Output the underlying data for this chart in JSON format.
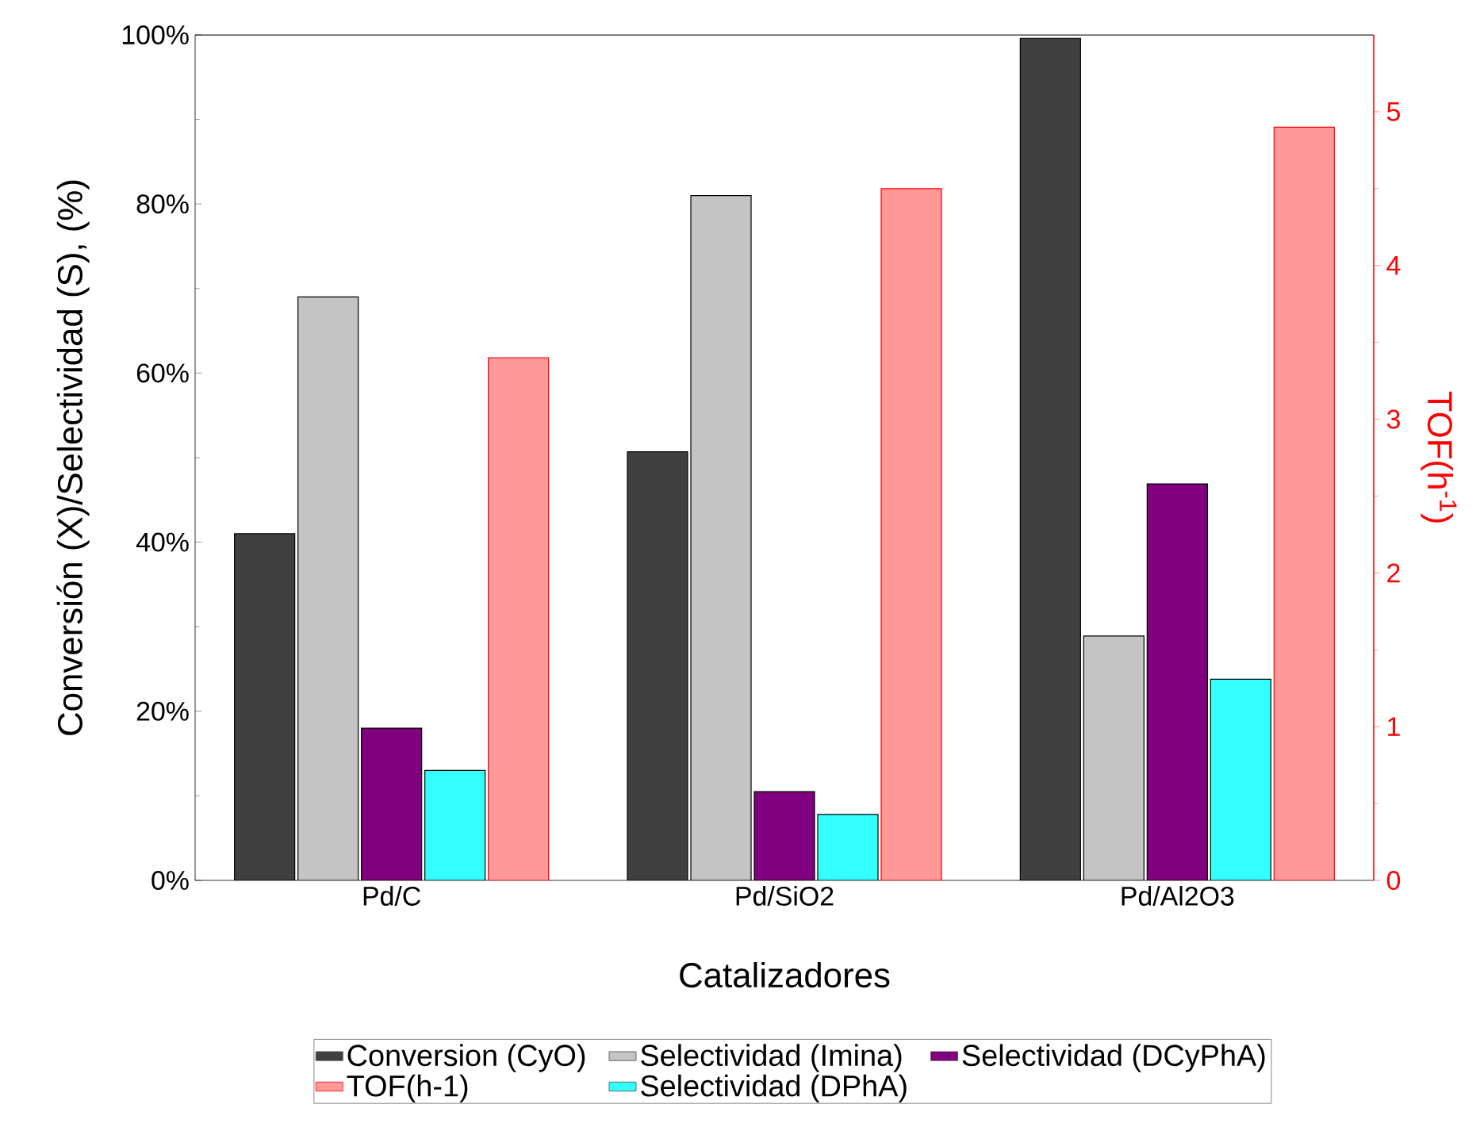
{
  "chart_data": {
    "type": "bar",
    "xlabel": "Catalizadores",
    "ylabel": "Conversión (X)/Selectividad (S), (%)",
    "y2label": "TOF(h$^{-1}$)",
    "categories": [
      "Pd/C",
      "Pd/SiO2",
      "Pd/Al2O3"
    ],
    "series": [
      {
        "name": "Conversion (CyO)",
        "color": "#404040",
        "values": [
          41,
          50.7,
          99.6
        ]
      },
      {
        "name": "Selectividad (Imina)",
        "color": "#c4c4c4",
        "values": [
          69,
          81,
          28.9
        ]
      },
      {
        "name": "Selectividad (DCyPhA)",
        "color": "#800080",
        "values": [
          18,
          10.5,
          46.9
        ]
      },
      {
        "name": "TOF(h-1)",
        "color": "#ff9999",
        "axis": "y2",
        "values": [
          3.4,
          4.5,
          4.9
        ]
      },
      {
        "name": "Selectividad (DPhA)",
        "color": "#33ffff",
        "values": [
          13,
          7.8,
          23.8
        ]
      }
    ],
    "ylim": [
      0,
      100
    ],
    "yticks": [
      {
        "value": 0,
        "label": "0%"
      },
      {
        "value": 20,
        "label": "20%"
      },
      {
        "value": 40,
        "label": "40%"
      },
      {
        "value": 60,
        "label": "60%"
      },
      {
        "value": 80,
        "label": "80%"
      },
      {
        "value": 100,
        "label": "100%"
      }
    ],
    "y2lim": [
      0,
      5.5
    ],
    "y2ticks": [
      0,
      1,
      2,
      3,
      4,
      5
    ],
    "legend": "bottom",
    "grid": false
  }
}
